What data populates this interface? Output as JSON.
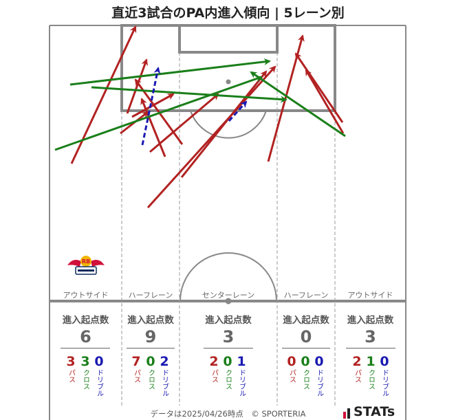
{
  "title": "直近3試合のPA内進入傾向 | 5レーン別",
  "lanes": [
    {
      "label": "アウトサイド",
      "stat_head": "進入起点数",
      "total": "6",
      "pass": "3",
      "cross": "3",
      "dribble": "0"
    },
    {
      "label": "ハーフレーン",
      "stat_head": "進入起点数",
      "total": "9",
      "pass": "7",
      "cross": "0",
      "dribble": "2"
    },
    {
      "label": "センターレーン",
      "stat_head": "進入起点数",
      "total": "3",
      "pass": "2",
      "cross": "0",
      "dribble": "1"
    },
    {
      "label": "ハーフレーン",
      "stat_head": "進入起点数",
      "total": "0",
      "pass": "0",
      "cross": "0",
      "dribble": "0"
    },
    {
      "label": "アウトサイド",
      "stat_head": "進入起点数",
      "total": "3",
      "pass": "2",
      "cross": "1",
      "dribble": "0"
    }
  ],
  "legend": {
    "pass": "パス",
    "cross": "クロス",
    "dribble": "ドリブル"
  },
  "colors": {
    "pass": "#b22222",
    "cross": "#1a7f1a",
    "dribble": "#1a1ab2",
    "pitch_line": "#888888"
  },
  "footer": "データは2025/04/26時点　© SPORTERIA",
  "brand": "STATs",
  "team_logo": {
    "text": "RB"
  }
}
